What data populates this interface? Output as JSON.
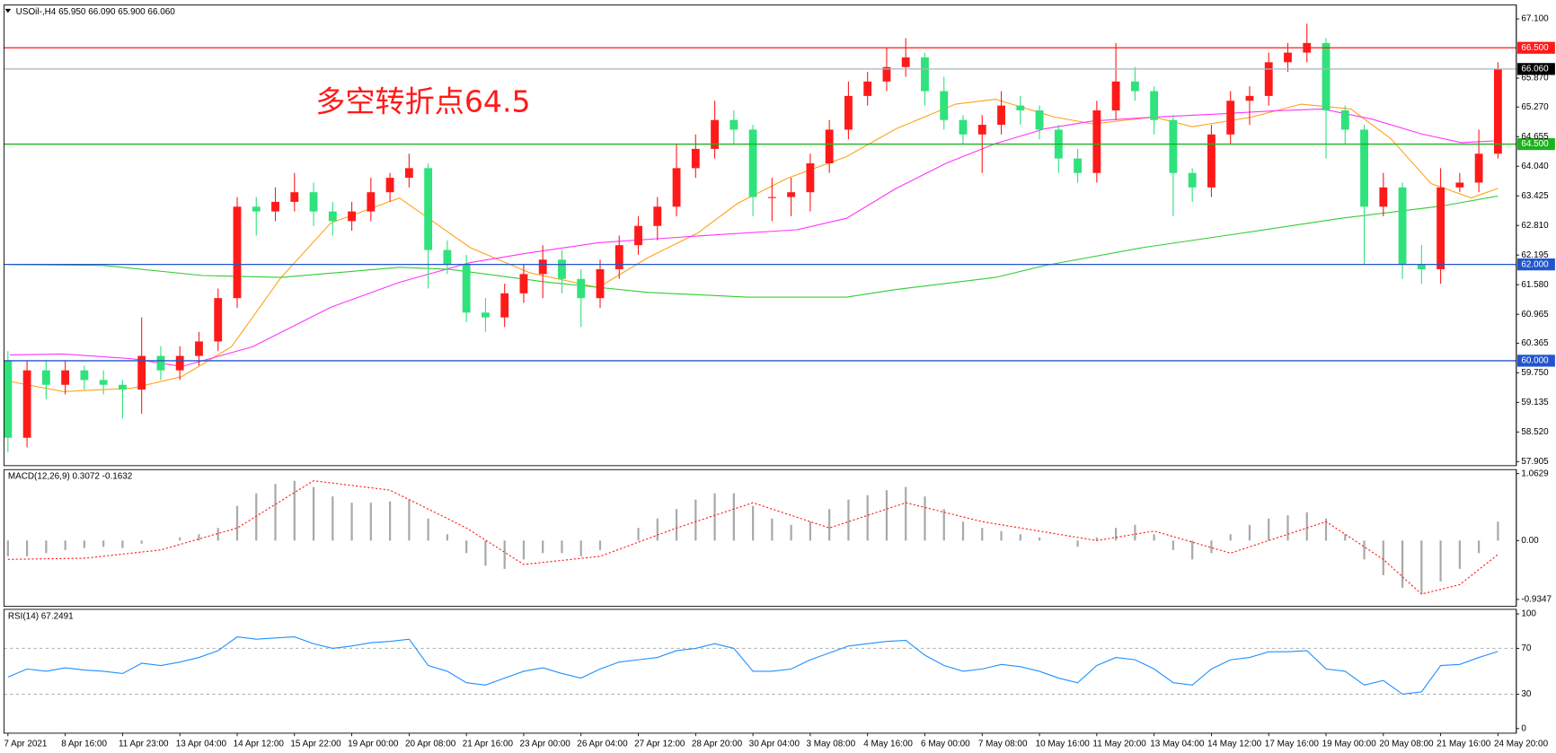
{
  "chart_data": [
    {
      "type": "candlestick",
      "title": "USOil-,H4  65.950 66.090 65.900 66.060",
      "annotation": {
        "text": "多空转折点64.5",
        "color": "#ff1a1a"
      },
      "bull_color": "#ff1a1a",
      "bear_color": "#2fe27c",
      "categories": [
        "7 Apr 2021",
        null,
        null,
        "8 Apr 16:00",
        null,
        null,
        "11 Apr 23:00",
        null,
        null,
        "13 Apr 04:00",
        null,
        null,
        "14 Apr 12:00",
        null,
        null,
        "15 Apr 22:00",
        null,
        null,
        "19 Apr 00:00",
        null,
        null,
        "20 Apr 08:00",
        null,
        null,
        "21 Apr 16:00",
        null,
        null,
        "23 Apr 00:00",
        null,
        null,
        "26 Apr 04:00",
        null,
        null,
        "27 Apr 12:00",
        null,
        null,
        "28 Apr 20:00",
        null,
        null,
        "30 Apr 04:00",
        null,
        null,
        "3 May 08:00",
        null,
        null,
        "4 May 16:00",
        null,
        null,
        "6 May 00:00",
        null,
        null,
        "7 May 08:00",
        null,
        null,
        "10 May 16:00",
        null,
        null,
        "11 May 20:00",
        null,
        null,
        "13 May 04:00",
        null,
        null,
        "14 May 12:00",
        null,
        null,
        "17 May 16:00",
        null,
        null,
        "19 May 00:00",
        null,
        null,
        "20 May 08:00",
        null,
        null,
        "21 May 16:00",
        null,
        null,
        "24 May 20:00"
      ],
      "open": [
        60.0,
        58.4,
        59.8,
        59.5,
        59.8,
        59.6,
        59.5,
        59.4,
        60.1,
        59.8,
        60.1,
        60.4,
        61.3,
        63.2,
        63.1,
        63.3,
        63.5,
        63.1,
        62.9,
        63.1,
        63.5,
        63.8,
        64.0,
        62.3,
        62.0,
        61.0,
        60.9,
        61.4,
        61.8,
        62.1,
        61.7,
        61.3,
        61.9,
        62.4,
        62.8,
        63.2,
        64.0,
        64.4,
        65.0,
        64.8,
        63.4,
        63.4,
        63.5,
        64.1,
        64.8,
        65.5,
        65.8,
        66.1,
        66.3,
        65.6,
        65.0,
        64.7,
        64.9,
        65.3,
        65.2,
        64.8,
        64.2,
        63.9,
        65.2,
        65.8,
        65.6,
        65.0,
        63.9,
        63.6,
        64.7,
        65.4,
        65.5,
        66.2,
        66.4,
        66.6,
        65.2,
        64.8,
        63.2,
        63.6,
        62.0,
        61.9,
        63.6,
        63.7,
        64.3
      ],
      "high": [
        60.2,
        60.0,
        60.0,
        60.0,
        59.9,
        59.8,
        59.6,
        60.9,
        60.3,
        60.3,
        60.6,
        61.5,
        63.4,
        63.4,
        63.6,
        63.9,
        63.7,
        63.3,
        63.3,
        63.8,
        63.9,
        64.3,
        64.1,
        62.5,
        62.2,
        61.3,
        61.6,
        62.0,
        62.4,
        62.3,
        61.9,
        62.1,
        62.6,
        63.0,
        63.4,
        64.5,
        64.7,
        65.4,
        65.2,
        64.9,
        63.8,
        63.8,
        64.3,
        65.0,
        65.8,
        66.0,
        66.5,
        66.7,
        66.4,
        65.9,
        65.1,
        65.1,
        65.6,
        65.5,
        65.3,
        64.9,
        64.4,
        65.4,
        66.6,
        66.1,
        65.7,
        65.1,
        64.0,
        64.9,
        65.6,
        65.7,
        66.4,
        66.6,
        67.0,
        66.7,
        65.3,
        64.9,
        63.9,
        63.7,
        62.4,
        64.0,
        63.9,
        64.8,
        66.2
      ],
      "low": [
        58.1,
        58.2,
        59.2,
        59.3,
        59.4,
        59.3,
        58.8,
        58.9,
        59.6,
        59.6,
        59.9,
        60.2,
        61.1,
        62.6,
        62.9,
        63.1,
        62.8,
        62.6,
        62.7,
        62.9,
        63.3,
        63.6,
        61.5,
        61.8,
        60.8,
        60.6,
        60.7,
        61.2,
        61.3,
        61.4,
        60.7,
        61.1,
        61.7,
        62.2,
        62.5,
        63.0,
        63.8,
        64.2,
        64.5,
        63.0,
        62.9,
        63.0,
        63.1,
        63.9,
        64.6,
        65.3,
        65.6,
        65.9,
        65.3,
        64.8,
        64.5,
        63.9,
        64.7,
        64.9,
        64.6,
        63.9,
        63.7,
        63.7,
        65.0,
        65.4,
        64.7,
        63.0,
        63.3,
        63.4,
        64.5,
        64.9,
        65.3,
        66.0,
        66.2,
        64.2,
        64.5,
        62.0,
        63.0,
        61.7,
        61.6,
        61.6,
        63.5,
        63.5,
        64.2
      ],
      "close": [
        58.4,
        59.8,
        59.5,
        59.8,
        59.6,
        59.5,
        59.4,
        60.1,
        59.8,
        60.1,
        60.4,
        61.3,
        63.2,
        63.1,
        63.3,
        63.5,
        63.1,
        62.9,
        63.1,
        63.5,
        63.8,
        64.0,
        62.3,
        62.0,
        61.0,
        60.9,
        61.4,
        61.8,
        62.1,
        61.7,
        61.3,
        61.9,
        62.4,
        62.8,
        63.2,
        64.0,
        64.4,
        65.0,
        64.8,
        63.4,
        63.4,
        63.5,
        64.1,
        64.8,
        65.5,
        65.8,
        66.1,
        66.3,
        65.6,
        65.0,
        64.7,
        64.9,
        65.3,
        65.2,
        64.8,
        64.2,
        63.9,
        65.2,
        65.8,
        65.6,
        65.0,
        63.9,
        63.6,
        64.7,
        65.4,
        65.5,
        66.2,
        66.4,
        66.6,
        65.2,
        64.8,
        63.2,
        63.6,
        62.0,
        61.9,
        63.6,
        63.7,
        64.3,
        66.06
      ],
      "ma_lines": [
        {
          "color": "#ffa31a",
          "x": [
            0.1,
            2.9,
            6.5,
            9.1,
            11.7,
            14.3,
            16.9,
            20.5,
            24.2,
            27.3,
            30.9,
            33.5,
            36.1,
            38.2,
            40.8,
            43.9,
            46.5,
            49.6,
            51.7,
            54.8,
            56.8,
            60,
            62,
            65.1,
            67.7,
            70.3,
            72.4,
            74.5,
            76.6,
            78
          ],
          "values": [
            59.57,
            59.36,
            59.43,
            59.67,
            60.29,
            61.73,
            62.86,
            63.38,
            62.35,
            61.83,
            61.52,
            62.14,
            62.65,
            63.27,
            63.79,
            64.24,
            64.82,
            65.33,
            65.43,
            65.06,
            64.92,
            65.06,
            64.86,
            65.06,
            65.33,
            65.23,
            64.61,
            63.68,
            63.38,
            63.58
          ]
        },
        {
          "color": "#ff33ff",
          "x": [
            0.1,
            2.9,
            6.5,
            9.1,
            12.8,
            16.9,
            20.5,
            24.2,
            27.3,
            30.9,
            36.1,
            41.3,
            43.9,
            46.5,
            49.1,
            51.7,
            54.3,
            56.8,
            60,
            63.1,
            66.2,
            68.8,
            71.4,
            74,
            76.1,
            78
          ],
          "values": [
            60.12,
            60.14,
            60.04,
            59.88,
            60.29,
            61.11,
            61.63,
            62.04,
            62.24,
            62.45,
            62.59,
            62.72,
            62.96,
            63.58,
            64.1,
            64.51,
            64.82,
            64.98,
            65.06,
            65.12,
            65.19,
            65.23,
            65.02,
            64.71,
            64.53,
            64.57
          ]
        },
        {
          "color": "#33cc33",
          "x": [
            0.1,
            5,
            10.2,
            14.3,
            20.5,
            23.1,
            28.3,
            33.5,
            38.7,
            43.9,
            46.5,
            51.7,
            54.3,
            59.4,
            64.6,
            69.8,
            75,
            78
          ],
          "values": [
            62.0,
            61.98,
            61.77,
            61.73,
            61.94,
            61.9,
            61.63,
            61.42,
            61.32,
            61.32,
            61.48,
            61.73,
            61.98,
            62.35,
            62.65,
            62.96,
            63.21,
            63.42
          ]
        }
      ],
      "levels": [
        {
          "value": 66.5,
          "label": "66.500",
          "color": "#ff1a1a",
          "label_bg": "#ff1a1a"
        },
        {
          "value": 66.06,
          "label": "66.060",
          "color": "#a8b4bc",
          "label_bg": "#000000"
        },
        {
          "value": 64.5,
          "label": "64.500",
          "color": "#1fb21f",
          "label_bg": "#1fb21f"
        },
        {
          "value": 62.0,
          "label": "62.000",
          "color": "#2255cc",
          "label_bg": "#2255cc"
        },
        {
          "value": 60.0,
          "label": "60.000",
          "color": "#2255cc",
          "label_bg": "#2255cc"
        }
      ],
      "ylim": [
        57.82,
        67.39
      ],
      "yticks": [
        {
          "value": 67.1,
          "label": "67.100"
        },
        {
          "value": 65.87,
          "label": "65.870"
        },
        {
          "value": 65.27,
          "label": "65.270"
        },
        64.655,
        {
          "value": 64.04,
          "label": "64.040"
        },
        63.425,
        {
          "value": 62.81,
          "label": "62.810"
        },
        62.195,
        {
          "value": 61.58,
          "label": "61.580"
        },
        60.965,
        60.365,
        {
          "value": 59.75,
          "label": "59.750"
        },
        59.135,
        {
          "value": 58.52,
          "label": "58.520"
        },
        57.905
      ]
    },
    {
      "type": "bar",
      "title": "MACD(12,26,9) 0.3072 -0.1632",
      "color": "#a9a9a9",
      "values": [
        -0.25,
        -0.25,
        -0.2,
        -0.15,
        -0.12,
        -0.1,
        -0.12,
        -0.05,
        0.0,
        0.05,
        0.1,
        0.2,
        0.55,
        0.75,
        0.9,
        0.95,
        0.85,
        0.7,
        0.6,
        0.6,
        0.62,
        0.65,
        0.35,
        0.1,
        -0.2,
        -0.4,
        -0.45,
        -0.3,
        -0.2,
        -0.2,
        -0.25,
        -0.15,
        0.0,
        0.2,
        0.35,
        0.5,
        0.65,
        0.75,
        0.75,
        0.55,
        0.35,
        0.25,
        0.3,
        0.5,
        0.65,
        0.72,
        0.8,
        0.85,
        0.7,
        0.5,
        0.3,
        0.2,
        0.15,
        0.1,
        0.05,
        0.0,
        -0.1,
        0.05,
        0.2,
        0.25,
        0.1,
        -0.15,
        -0.3,
        -0.2,
        0.1,
        0.25,
        0.35,
        0.4,
        0.45,
        0.35,
        0.1,
        -0.3,
        -0.55,
        -0.75,
        -0.85,
        -0.65,
        -0.45,
        -0.2,
        0.3
      ],
      "signal": {
        "color": "#ff1a1a",
        "x": [
          0,
          4,
          8,
          12,
          16,
          20,
          24,
          27,
          31,
          35,
          39,
          43,
          47,
          51,
          57,
          60,
          64,
          69,
          72,
          74,
          76,
          78
        ],
        "values": [
          -0.3,
          -0.28,
          -0.15,
          0.2,
          0.95,
          0.8,
          0.2,
          -0.38,
          -0.25,
          0.2,
          0.6,
          0.2,
          0.6,
          0.3,
          0.0,
          0.15,
          -0.2,
          0.3,
          -0.3,
          -0.85,
          -0.7,
          -0.22
        ]
      },
      "ylim": [
        -1.045,
        1.126
      ],
      "yticks": [
        1.0629,
        {
          "value": 0,
          "label": "0.00"
        },
        -0.9347
      ]
    },
    {
      "type": "line",
      "title": "RSI(14) 67.2491",
      "color": "#1e90ff",
      "values": [
        45,
        52,
        50,
        53,
        51,
        50,
        48,
        57,
        55,
        58,
        62,
        68,
        80,
        78,
        79,
        80,
        74,
        70,
        72,
        75,
        76,
        78,
        55,
        50,
        40,
        38,
        44,
        50,
        53,
        48,
        44,
        52,
        58,
        60,
        62,
        68,
        70,
        74,
        70,
        50,
        50,
        52,
        60,
        66,
        72,
        74,
        76,
        77,
        64,
        55,
        50,
        52,
        56,
        54,
        50,
        44,
        40,
        55,
        62,
        60,
        52,
        40,
        38,
        52,
        60,
        62,
        67,
        67,
        68,
        52,
        50,
        38,
        42,
        30,
        32,
        55,
        56,
        62,
        67.2491
      ],
      "levels": [
        70,
        30
      ],
      "ylim": [
        -4,
        104
      ],
      "yticks": [
        100,
        70,
        30,
        0
      ]
    }
  ]
}
